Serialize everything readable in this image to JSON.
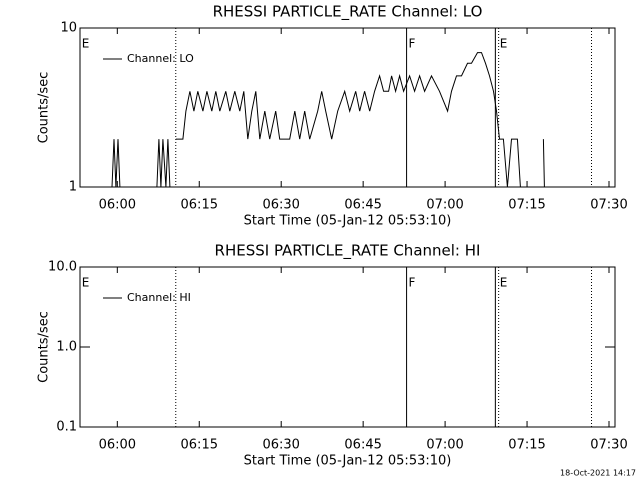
{
  "chart_data": [
    {
      "type": "line",
      "title": "RHESSI PARTICLE_RATE Channel: LO",
      "xlabel": "Start Time (05-Jan-12 05:53:10)",
      "ylabel": "Counts/sec",
      "log_y": true,
      "legend": "upper left",
      "xlim": [
        353.17,
        451.1
      ],
      "xticks": [
        {
          "value": 360,
          "label": "06:00"
        },
        {
          "value": 375,
          "label": "06:15"
        },
        {
          "value": 390,
          "label": "06:30"
        },
        {
          "value": 405,
          "label": "06:45"
        },
        {
          "value": 420,
          "label": "07:00"
        },
        {
          "value": 435,
          "label": "07:15"
        },
        {
          "value": 450,
          "label": "07:30"
        }
      ],
      "ylim": [
        1,
        10
      ],
      "yticks": [
        1,
        10
      ],
      "markers": [
        {
          "x": 370.7,
          "style": "dotted"
        },
        {
          "x": 412.95,
          "style": "solid"
        },
        {
          "x": 429.2,
          "style": "solid"
        },
        {
          "x": 429.8,
          "style": "dotted"
        },
        {
          "x": 446.8,
          "style": "dotted"
        }
      ],
      "annotations": [
        {
          "text": "E",
          "x": 353.5
        },
        {
          "text": "F",
          "x": 413.3
        },
        {
          "text": "E",
          "x": 430
        }
      ],
      "series": [
        {
          "name": "Channel: LO",
          "color": "#000000",
          "x": [
            359.02,
            359.39,
            359.75,
            360.12,
            360.48,
            364.0,
            367.25,
            367.61,
            367.98,
            368.34,
            368.89,
            369.26,
            369.62,
            370.2,
            370.72,
            372.0,
            372.55,
            373.28,
            374.01,
            374.74,
            375.66,
            376.39,
            377.3,
            378.03,
            378.76,
            379.86,
            380.59,
            381.51,
            382.42,
            383.15,
            383.88,
            384.61,
            385.35,
            386.08,
            386.99,
            387.9,
            389.0,
            389.73,
            391.56,
            392.48,
            393.39,
            394.3,
            395.22,
            396.68,
            397.41,
            398.14,
            399.24,
            400.34,
            401.62,
            402.53,
            403.63,
            404.36,
            405.27,
            406.19,
            407.1,
            408.01,
            408.75,
            409.66,
            410.21,
            410.94,
            411.67,
            412.4,
            413.5,
            414.41,
            415.33,
            416.24,
            417.52,
            418.98,
            420.45,
            421.18,
            422.09,
            423.0,
            424.1,
            424.83,
            425.93,
            426.66,
            427.39,
            428.12,
            428.86,
            429.4,
            429.95,
            430.68,
            431.41,
            432.15,
            433.24,
            433.79,
            436.0,
            438.0,
            438.18
          ],
          "values": [
            1,
            2,
            1,
            2,
            1,
            null,
            1,
            2,
            1,
            2,
            1,
            2,
            1,
            null,
            2,
            2,
            3,
            4,
            3,
            4,
            3,
            4,
            3,
            4,
            3,
            4,
            3,
            4,
            3,
            4,
            2,
            3,
            4,
            2,
            3,
            2,
            3,
            2,
            2,
            3,
            2,
            3,
            2,
            3,
            4,
            3,
            2,
            3,
            4,
            3,
            4,
            3,
            4,
            3,
            4,
            5,
            4,
            4,
            5,
            4,
            5,
            4,
            5,
            4,
            5,
            4,
            5,
            4,
            3,
            4,
            5,
            5,
            6,
            6,
            7,
            7,
            6,
            5,
            4,
            3,
            2,
            2,
            1,
            2,
            2,
            1,
            null,
            2,
            1
          ]
        }
      ]
    },
    {
      "type": "line",
      "title": "RHESSI PARTICLE_RATE Channel: HI",
      "xlabel": "Start Time (05-Jan-12 05:53:10)",
      "ylabel": "Counts/sec",
      "log_y": true,
      "legend": "upper left",
      "xlim": [
        353.17,
        451.1
      ],
      "xticks": [
        {
          "value": 360,
          "label": "06:00"
        },
        {
          "value": 375,
          "label": "06:15"
        },
        {
          "value": 390,
          "label": "06:30"
        },
        {
          "value": 405,
          "label": "06:45"
        },
        {
          "value": 420,
          "label": "07:00"
        },
        {
          "value": 435,
          "label": "07:15"
        },
        {
          "value": 450,
          "label": "07:30"
        }
      ],
      "ylim": [
        0.1,
        10
      ],
      "yticks": [
        0.1,
        {
          "value": 1,
          "label": "1.0"
        },
        {
          "value": 10,
          "label": "10.0"
        }
      ],
      "markers": [
        {
          "x": 370.7,
          "style": "dotted"
        },
        {
          "x": 412.95,
          "style": "solid"
        },
        {
          "x": 429.2,
          "style": "solid"
        },
        {
          "x": 429.8,
          "style": "dotted"
        },
        {
          "x": 446.8,
          "style": "dotted"
        }
      ],
      "annotations": [
        {
          "text": "E",
          "x": 353.5
        },
        {
          "text": "F",
          "x": 413.3
        },
        {
          "text": "E",
          "x": 430
        }
      ],
      "series": [
        {
          "name": "Channel: HI",
          "color": "#000000",
          "x": [],
          "values": []
        }
      ]
    }
  ],
  "footer": "18-Oct-2021 14:17"
}
